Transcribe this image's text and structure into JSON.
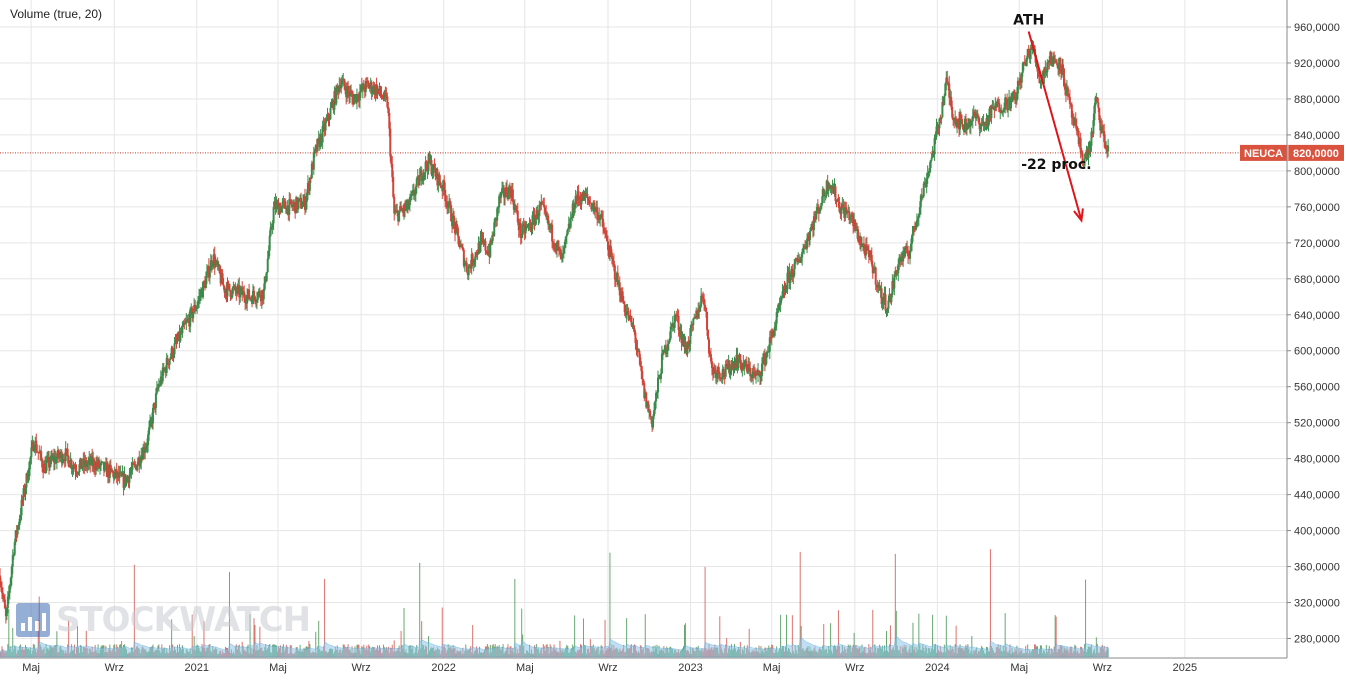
{
  "indicator_label": "Volume (true, 20)",
  "watermark": "STOCKWATCH",
  "colors": {
    "up": "#3a8a4a",
    "down": "#d0443a",
    "volume_up": "#4c9a58",
    "volume_down": "#d65a52",
    "volume_ma": "#8fc6ea",
    "price_line": "#c0392b",
    "price_tag_bg": "#d9533f",
    "arrow": "#e0141b",
    "grid": "#e6e6e6"
  },
  "chart_data": {
    "type": "candlestick",
    "symbol": "NEUCA",
    "last_price_label": "820,0000",
    "last_price": 820,
    "ylim": [
      260,
      975
    ],
    "y_ticks": [
      {
        "value": 960,
        "label": "960,0000"
      },
      {
        "value": 920,
        "label": "920,0000"
      },
      {
        "value": 880,
        "label": "880,0000"
      },
      {
        "value": 840,
        "label": "840,0000"
      },
      {
        "value": 800,
        "label": "800,0000"
      },
      {
        "value": 760,
        "label": "760,0000"
      },
      {
        "value": 720,
        "label": "720,0000"
      },
      {
        "value": 680,
        "label": "680,0000"
      },
      {
        "value": 640,
        "label": "640,0000"
      },
      {
        "value": 600,
        "label": "600,0000"
      },
      {
        "value": 560,
        "label": "560,0000"
      },
      {
        "value": 520,
        "label": "520,0000"
      },
      {
        "value": 480,
        "label": "480,0000"
      },
      {
        "value": 440,
        "label": "440,0000"
      },
      {
        "value": 400,
        "label": "400,0000"
      },
      {
        "value": 360,
        "label": "360,0000"
      },
      {
        "value": 320,
        "label": "320,0000"
      },
      {
        "value": 280,
        "label": "280,0000"
      }
    ],
    "xlim": [
      "2020-03-16",
      "2025-06-01"
    ],
    "x_ticks": [
      {
        "date": "2020-05-01",
        "label": "Maj"
      },
      {
        "date": "2020-09-01",
        "label": "Wrz"
      },
      {
        "date": "2021-01-01",
        "label": "2021"
      },
      {
        "date": "2021-05-01",
        "label": "Maj"
      },
      {
        "date": "2021-09-01",
        "label": "Wrz"
      },
      {
        "date": "2022-01-01",
        "label": "2022"
      },
      {
        "date": "2022-05-01",
        "label": "Maj"
      },
      {
        "date": "2022-09-01",
        "label": "Wrz"
      },
      {
        "date": "2023-01-01",
        "label": "2023"
      },
      {
        "date": "2023-05-01",
        "label": "Maj"
      },
      {
        "date": "2023-09-01",
        "label": "Wrz"
      },
      {
        "date": "2024-01-01",
        "label": "2024"
      },
      {
        "date": "2024-05-01",
        "label": "Maj"
      },
      {
        "date": "2024-09-01",
        "label": "Wrz"
      },
      {
        "date": "2025-01-01",
        "label": "2025"
      }
    ],
    "price_path": [
      [
        "2020-03-16",
        350
      ],
      [
        "2020-03-25",
        300
      ],
      [
        "2020-04-05",
        380
      ],
      [
        "2020-04-20",
        440
      ],
      [
        "2020-05-05",
        500
      ],
      [
        "2020-05-20",
        470
      ],
      [
        "2020-06-05",
        480
      ],
      [
        "2020-06-20",
        485
      ],
      [
        "2020-07-05",
        470
      ],
      [
        "2020-08-01",
        475
      ],
      [
        "2020-09-01",
        462
      ],
      [
        "2020-09-15",
        455
      ],
      [
        "2020-10-01",
        470
      ],
      [
        "2020-10-20",
        500
      ],
      [
        "2020-11-05",
        560
      ],
      [
        "2020-11-20",
        590
      ],
      [
        "2020-12-10",
        620
      ],
      [
        "2020-12-31",
        650
      ],
      [
        "2021-01-15",
        680
      ],
      [
        "2021-01-25",
        705
      ],
      [
        "2021-02-10",
        670
      ],
      [
        "2021-03-01",
        665
      ],
      [
        "2021-03-20",
        660
      ],
      [
        "2021-04-10",
        665
      ],
      [
        "2021-04-25",
        760
      ],
      [
        "2021-05-20",
        760
      ],
      [
        "2021-06-10",
        765
      ],
      [
        "2021-06-25",
        820
      ],
      [
        "2021-07-15",
        860
      ],
      [
        "2021-08-01",
        900
      ],
      [
        "2021-08-20",
        880
      ],
      [
        "2021-09-10",
        895
      ],
      [
        "2021-09-25",
        890
      ],
      [
        "2021-10-10",
        875
      ],
      [
        "2021-10-20",
        750
      ],
      [
        "2021-11-10",
        760
      ],
      [
        "2021-12-01",
        800
      ],
      [
        "2021-12-10",
        810
      ],
      [
        "2022-01-01",
        780
      ],
      [
        "2022-01-20",
        730
      ],
      [
        "2022-02-05",
        690
      ],
      [
        "2022-02-25",
        720
      ],
      [
        "2022-03-10",
        710
      ],
      [
        "2022-03-25",
        770
      ],
      [
        "2022-04-10",
        780
      ],
      [
        "2022-04-25",
        730
      ],
      [
        "2022-05-10",
        740
      ],
      [
        "2022-05-25",
        760
      ],
      [
        "2022-06-10",
        730
      ],
      [
        "2022-06-25",
        700
      ],
      [
        "2022-07-15",
        770
      ],
      [
        "2022-08-01",
        770
      ],
      [
        "2022-08-20",
        750
      ],
      [
        "2022-09-10",
        690
      ],
      [
        "2022-09-25",
        650
      ],
      [
        "2022-10-10",
        620
      ],
      [
        "2022-10-25",
        550
      ],
      [
        "2022-11-05",
        520
      ],
      [
        "2022-11-20",
        590
      ],
      [
        "2022-12-10",
        640
      ],
      [
        "2022-12-25",
        600
      ],
      [
        "2023-01-10",
        640
      ],
      [
        "2023-01-20",
        665
      ],
      [
        "2023-02-01",
        580
      ],
      [
        "2023-02-20",
        575
      ],
      [
        "2023-03-10",
        590
      ],
      [
        "2023-03-25",
        580
      ],
      [
        "2023-04-10",
        570
      ],
      [
        "2023-04-25",
        600
      ],
      [
        "2023-05-10",
        640
      ],
      [
        "2023-05-25",
        680
      ],
      [
        "2023-06-10",
        700
      ],
      [
        "2023-06-25",
        730
      ],
      [
        "2023-07-10",
        760
      ],
      [
        "2023-07-25",
        790
      ],
      [
        "2023-08-10",
        760
      ],
      [
        "2023-08-25",
        750
      ],
      [
        "2023-09-10",
        720
      ],
      [
        "2023-09-25",
        700
      ],
      [
        "2023-10-10",
        660
      ],
      [
        "2023-10-20",
        650
      ],
      [
        "2023-11-05",
        700
      ],
      [
        "2023-11-20",
        710
      ],
      [
        "2023-12-05",
        760
      ],
      [
        "2023-12-25",
        820
      ],
      [
        "2024-01-05",
        860
      ],
      [
        "2024-01-15",
        900
      ],
      [
        "2024-01-25",
        860
      ],
      [
        "2024-02-10",
        850
      ],
      [
        "2024-02-25",
        860
      ],
      [
        "2024-03-10",
        850
      ],
      [
        "2024-03-25",
        870
      ],
      [
        "2024-04-10",
        875
      ],
      [
        "2024-04-25",
        880
      ],
      [
        "2024-05-05",
        910
      ],
      [
        "2024-05-20",
        940
      ],
      [
        "2024-06-01",
        900
      ],
      [
        "2024-06-15",
        925
      ],
      [
        "2024-07-01",
        920
      ],
      [
        "2024-07-15",
        870
      ],
      [
        "2024-07-25",
        840
      ],
      [
        "2024-08-05",
        810
      ],
      [
        "2024-08-15",
        830
      ],
      [
        "2024-08-22",
        880
      ],
      [
        "2024-09-01",
        840
      ],
      [
        "2024-09-10",
        820
      ]
    ],
    "annotations": [
      {
        "text": "ATH",
        "date": "2024-05-15",
        "value": 963
      },
      {
        "text": "-22 proc.",
        "date": "2024-06-25",
        "value": 802
      }
    ],
    "arrow": {
      "from": [
        "2024-05-15",
        955
      ],
      "to": [
        "2024-08-01",
        745
      ]
    }
  }
}
